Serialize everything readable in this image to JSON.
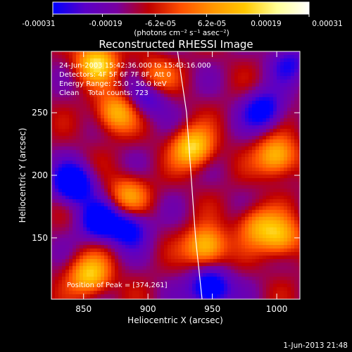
{
  "colorbar": {
    "tick_labels": [
      "-0.00031",
      "-0.00019",
      "-6.2e-05",
      "6.2e-05",
      "0.00019",
      "0.00031"
    ],
    "unit_label": "(photons cm⁻² s⁻¹ asec⁻²)"
  },
  "plot": {
    "title": "Reconstructed RHESSI Image",
    "xlabel": "Heliocentric X (arcsec)",
    "ylabel": "Heliocentric Y (arcsec)",
    "annotations": [
      "24-Jun-2003 15:42:36.000 to 15:43:16.000",
      "Detectors: 4F 5F 6F 7F 8F, Att 0",
      "Energy Range: 25.0 - 50.0 keV",
      "Clean    Total counts: 723"
    ],
    "peak_label": "Position of Peak = [374,261]",
    "footer_date": "1-Jun-2013 21:48"
  },
  "colors": {
    "background": "#000000",
    "foreground": "#ffffff",
    "colormap": [
      "#0000ff",
      "#5a00c8",
      "#7800a0",
      "#c00000",
      "#ff5000",
      "#ff9600",
      "#ffc800",
      "#ffff96",
      "#ffffff"
    ]
  },
  "chart_data": {
    "type": "heatmap",
    "title": "Reconstructed RHESSI Image",
    "xlabel": "Heliocentric X (arcsec)",
    "ylabel": "Heliocentric Y (arcsec)",
    "xlim": [
      825,
      1018
    ],
    "ylim": [
      101,
      299
    ],
    "xticks": [
      850,
      900,
      950,
      1000
    ],
    "yticks": [
      150,
      200,
      250
    ],
    "colorbar_range": [
      -0.00031,
      0.00031
    ],
    "colorbar_ticks": [
      -0.00031,
      -0.00019,
      -6.2e-05,
      6.2e-05,
      0.00019,
      0.00031
    ],
    "limb_curve": {
      "x": [
        923,
        930,
        937,
        942
      ],
      "y": [
        299,
        250,
        150,
        101
      ]
    },
    "bright_sources": [
      {
        "x": 860,
        "y": 290,
        "value": 0.00031
      },
      {
        "x": 875,
        "y": 250,
        "value": 0.00025
      },
      {
        "x": 935,
        "y": 222,
        "value": 0.00031
      },
      {
        "x": 1000,
        "y": 215,
        "value": 0.00028
      },
      {
        "x": 885,
        "y": 184,
        "value": 0.0002
      },
      {
        "x": 945,
        "y": 143,
        "value": 0.0003
      },
      {
        "x": 985,
        "y": 160,
        "value": 0.0002
      },
      {
        "x": 855,
        "y": 120,
        "value": 0.00029
      },
      {
        "x": 1003,
        "y": 150,
        "value": 0.00025
      },
      {
        "x": 905,
        "y": 278,
        "value": 0.00018
      }
    ],
    "negative_sources": [
      {
        "x": 842,
        "y": 193,
        "value": -0.00031
      },
      {
        "x": 862,
        "y": 163,
        "value": -0.00024
      },
      {
        "x": 885,
        "y": 158,
        "value": -0.00022
      },
      {
        "x": 948,
        "y": 110,
        "value": -0.0003
      },
      {
        "x": 990,
        "y": 252,
        "value": -0.00023
      },
      {
        "x": 900,
        "y": 263,
        "value": -0.00018
      },
      {
        "x": 1010,
        "y": 290,
        "value": -0.00015
      }
    ],
    "peak": [
      374,
      261
    ]
  }
}
